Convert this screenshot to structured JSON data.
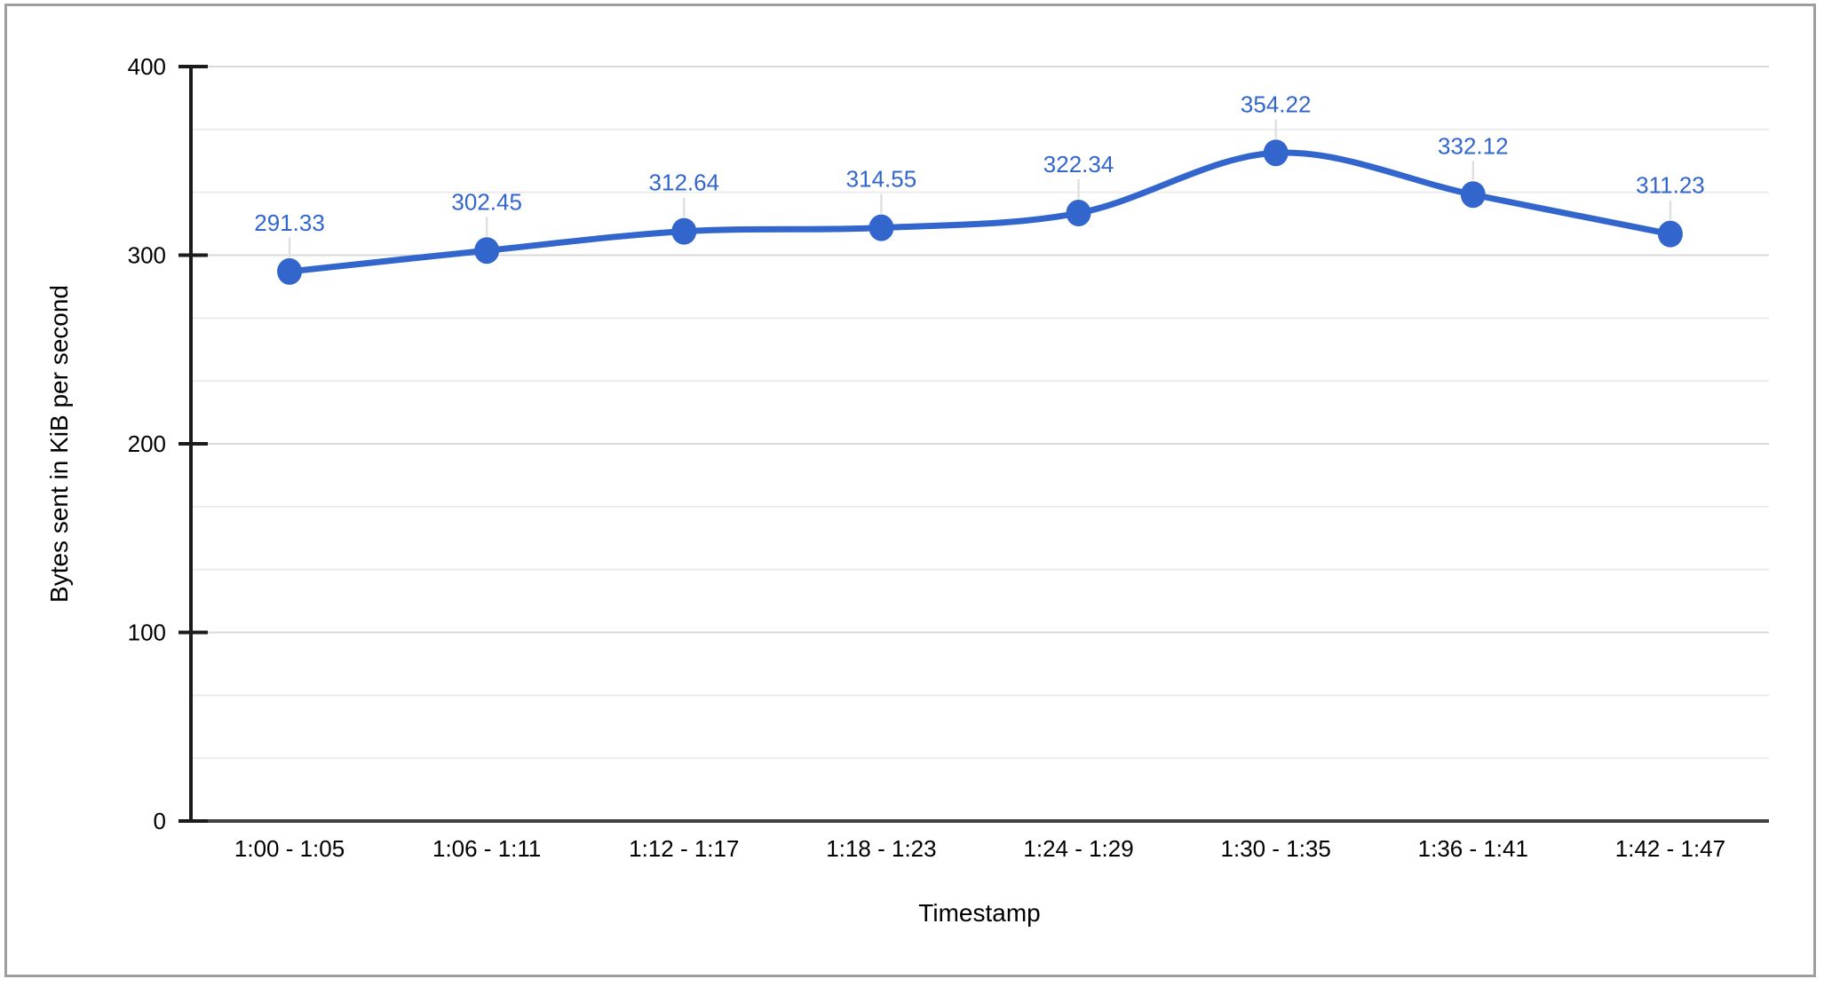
{
  "chart_data": {
    "type": "line",
    "smooth": true,
    "title": "",
    "xlabel": "Timestamp",
    "ylabel": "Bytes sent in KiB per second",
    "categories": [
      "1:00 - 1:05",
      "1:06 - 1:11",
      "1:12 - 1:17",
      "1:18 - 1:23",
      "1:24 - 1:29",
      "1:30 - 1:35",
      "1:36 - 1:41",
      "1:42 - 1:47"
    ],
    "values": [
      291.33,
      302.45,
      312.64,
      314.55,
      322.34,
      354.22,
      332.12,
      311.23
    ],
    "data_labels": [
      "291.33",
      "302.45",
      "312.64",
      "314.55",
      "322.34",
      "354.22",
      "332.12",
      "311.23"
    ],
    "ylim": [
      0,
      400
    ],
    "yticks": [
      0,
      100,
      200,
      300,
      400
    ],
    "minor_gridlines_per_major": 2,
    "grid": true,
    "legend": "none",
    "colors": {
      "series": "#3366cc",
      "data_label": "#3366cc",
      "major_grid": "#d9d9d9",
      "minor_grid": "#ececec",
      "leader_line": "#e0e0e0",
      "axis_line": "#1b1b1b",
      "baseline": "#424242",
      "tick_text": "#000000",
      "axis_title_text": "#000000",
      "frame_border": "#9e9e9e",
      "background": "#ffffff"
    }
  }
}
